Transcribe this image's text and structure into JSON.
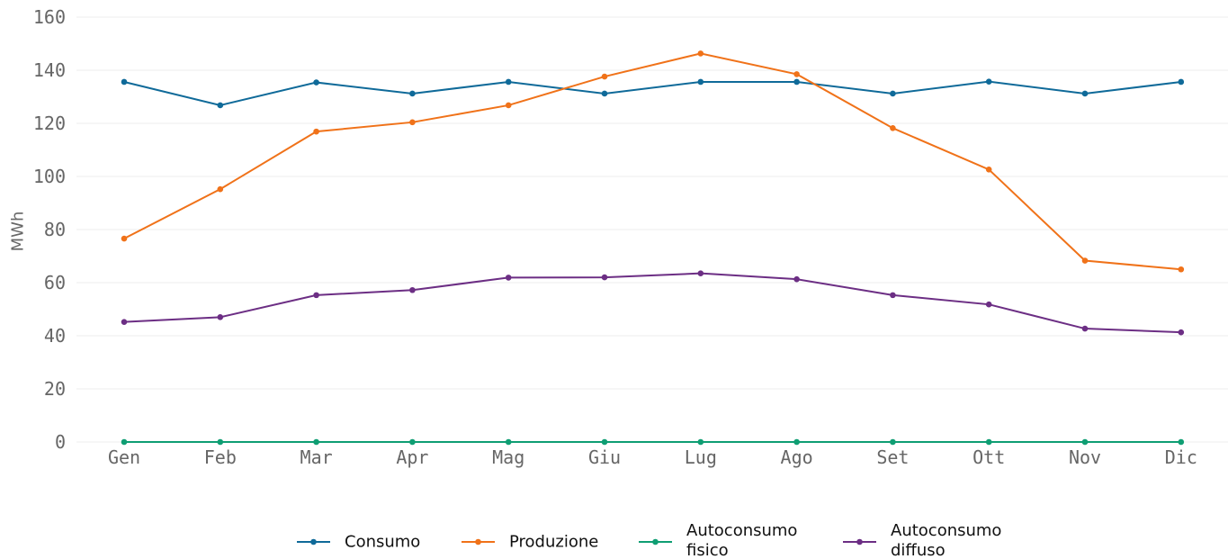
{
  "chart_data": {
    "type": "line",
    "title": "",
    "xlabel": "",
    "ylabel": "MWh",
    "ylim": [
      0,
      160
    ],
    "yticks": [
      "0",
      "20",
      "40",
      "60",
      "80",
      "100",
      "120",
      "140",
      "160"
    ],
    "grid": "horizontal",
    "legend_position": "bottom-center",
    "categories": [
      "Gen",
      "Feb",
      "Mar",
      "Apr",
      "Mag",
      "Giu",
      "Lug",
      "Ago",
      "Set",
      "Ott",
      "Nov",
      "Dic"
    ],
    "series": [
      {
        "name": "Consumo",
        "color": "#0f6a99",
        "values": [
          135.6,
          126.8,
          135.4,
          131.2,
          135.6,
          131.2,
          135.6,
          135.6,
          131.2,
          135.7,
          131.2,
          135.6
        ]
      },
      {
        "name": "Produzione",
        "color": "#f07219",
        "values": [
          76.6,
          95.2,
          116.9,
          120.4,
          126.8,
          137.6,
          146.3,
          138.5,
          118.2,
          102.6,
          68.3,
          65.0
        ]
      },
      {
        "name": "Autoconsumo fisico",
        "color": "#0f9e73",
        "values": [
          0,
          0,
          0,
          0,
          0,
          0,
          0,
          0,
          0,
          0,
          0,
          0
        ]
      },
      {
        "name": "Autoconsumo diffuso",
        "color": "#6c2e84",
        "values": [
          45.2,
          47.0,
          55.3,
          57.2,
          61.9,
          62.0,
          63.5,
          61.3,
          55.3,
          51.8,
          42.7,
          41.3
        ]
      }
    ]
  }
}
